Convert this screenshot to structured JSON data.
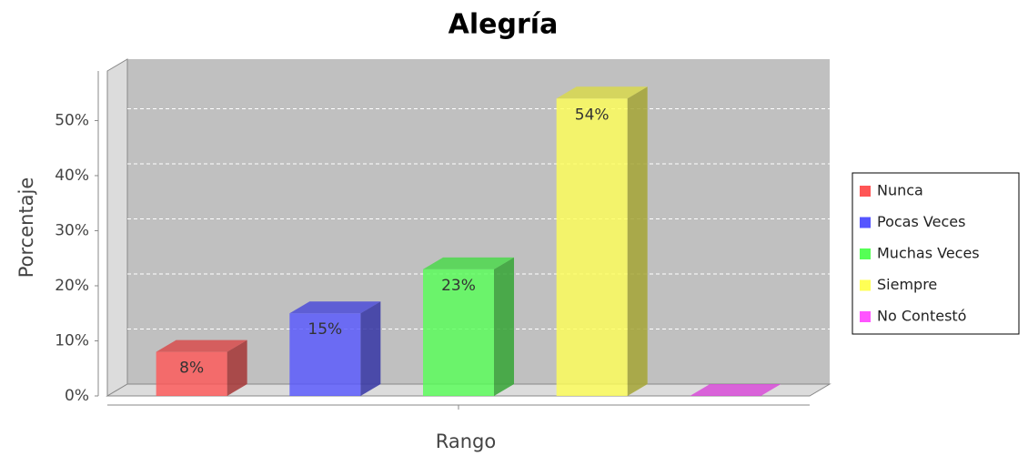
{
  "chart_data": {
    "type": "bar3d",
    "title": "Alegría",
    "x_label": "Rango",
    "y_label": "Porcentaje",
    "categories": [
      null
    ],
    "series": [
      {
        "name": "Nunca",
        "color": "#ff5555",
        "values": [
          8
        ],
        "value_labels": [
          "8%"
        ]
      },
      {
        "name": "Pocas Veces",
        "color": "#5555ff",
        "values": [
          15
        ],
        "value_labels": [
          "15%"
        ]
      },
      {
        "name": "Muchas Veces",
        "color": "#55ff55",
        "values": [
          23
        ],
        "value_labels": [
          "23%"
        ]
      },
      {
        "name": "Siempre",
        "color": "#ffff55",
        "values": [
          54
        ],
        "value_labels": [
          "54%"
        ]
      },
      {
        "name": "No Contestó",
        "color": "#ff55ff",
        "values": [
          0
        ],
        "value_labels": []
      }
    ],
    "ylim": [
      0,
      59
    ],
    "yticks": [
      {
        "value": 0,
        "label": "0%"
      },
      {
        "value": 10,
        "label": "10%"
      },
      {
        "value": 20,
        "label": "20%"
      },
      {
        "value": 30,
        "label": "30%"
      },
      {
        "value": 40,
        "label": "40%"
      },
      {
        "value": 50,
        "label": "50%"
      }
    ],
    "grid": true,
    "legend": "right"
  }
}
